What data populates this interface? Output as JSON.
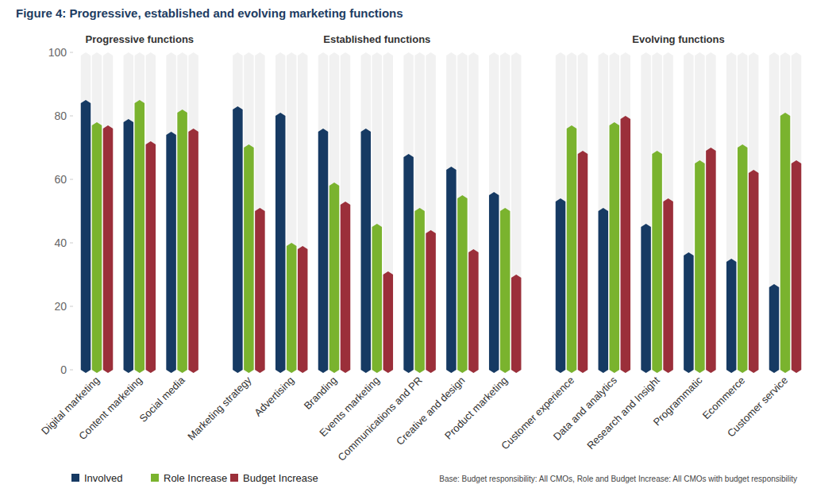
{
  "chart_data": {
    "type": "bar",
    "title": "Figure 4: Progressive, established and evolving marketing functions",
    "note": "Base: Budget responsibility: All CMOs, Role and Budget Increase: All CMOs with budget responsibility",
    "groups": [
      {
        "name": "Progressive functions",
        "size": 3
      },
      {
        "name": "Established functions",
        "size": 7
      },
      {
        "name": "Evolving functions",
        "size": 6
      }
    ],
    "categories": [
      "Digital marketing",
      "Content marketing",
      "Social media",
      "Marketing strategy",
      "Advertising",
      "Branding",
      "Events marketing",
      "Communications and PR",
      "Creative and design",
      "Product marketing",
      "Customer experience",
      "Data and analytics",
      "Research and Insight",
      "Programmatic",
      "Ecommerce",
      "Customer service"
    ],
    "series": [
      {
        "name": "Involved",
        "color": "#163a63",
        "values": [
          85,
          79,
          75,
          83,
          81,
          76,
          76,
          68,
          64,
          56,
          54,
          51,
          46,
          37,
          35,
          27
        ]
      },
      {
        "name": "Role Increase",
        "color": "#7ab32e",
        "values": [
          78,
          85,
          82,
          71,
          40,
          59,
          46,
          51,
          55,
          51,
          77,
          78,
          69,
          66,
          71,
          81
        ]
      },
      {
        "name": "Budget Increase",
        "color": "#9b2f3a",
        "values": [
          77,
          72,
          76,
          51,
          39,
          53,
          31,
          44,
          38,
          30,
          69,
          80,
          54,
          70,
          63,
          66
        ]
      }
    ],
    "ylim": [
      0,
      100
    ],
    "yticks": [
      0,
      20,
      40,
      60,
      80,
      100
    ],
    "grid": false,
    "legend": "bottom"
  }
}
